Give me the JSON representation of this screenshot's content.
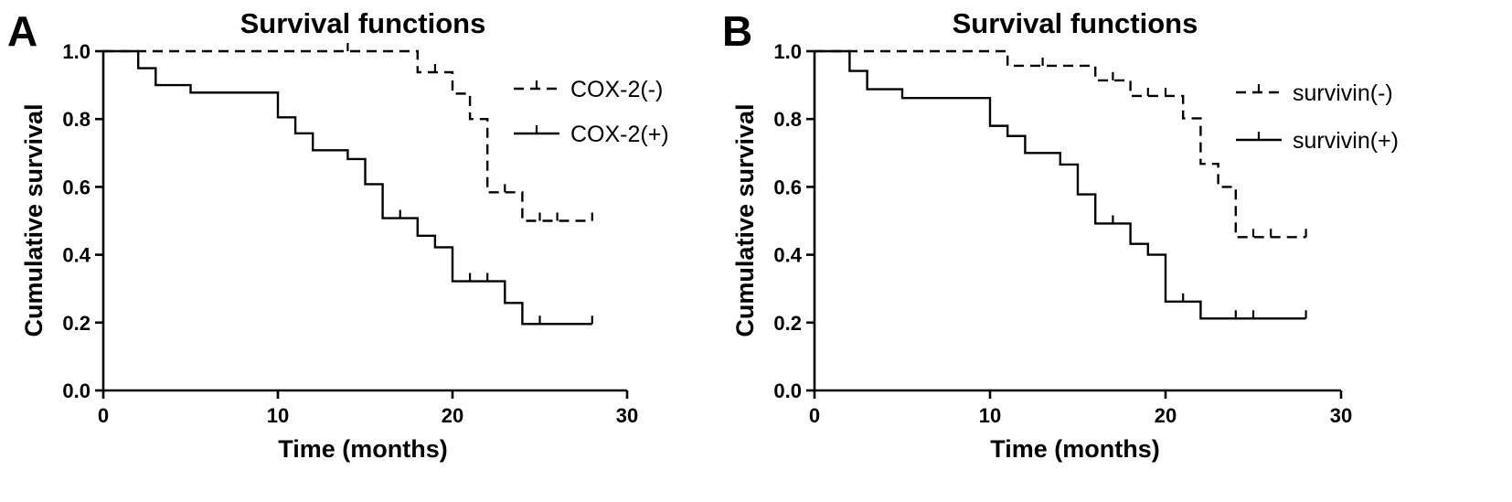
{
  "chart_data": [
    {
      "panel_letter": "A",
      "type": "line",
      "title": "Survival functions",
      "xlabel": "Time (months)",
      "ylabel": "Cumulative survival",
      "xlim": [
        0,
        30
      ],
      "ylim": [
        0,
        1
      ],
      "xticks": [
        0,
        10,
        20,
        30
      ],
      "yticks": [
        0.0,
        0.2,
        0.4,
        0.6,
        0.8,
        1.0
      ],
      "xtick_labels": [
        "0",
        "10",
        "20",
        "30"
      ],
      "ytick_labels": [
        "0.0",
        "0.2",
        "0.4",
        "0.6",
        "0.8",
        "1.0"
      ],
      "grid": false,
      "legend_position": "top-right",
      "series": [
        {
          "name": "COX-2(-)",
          "style": "dashed",
          "steps": [
            [
              0,
              1.0
            ],
            [
              18,
              0.938
            ],
            [
              20,
              0.875
            ],
            [
              21,
              0.8
            ],
            [
              22,
              0.584
            ],
            [
              24,
              0.5
            ],
            [
              28,
              0.5
            ]
          ],
          "censored": [
            [
              14,
              1.0
            ],
            [
              19,
              0.938
            ],
            [
              23,
              0.584
            ],
            [
              25,
              0.5
            ],
            [
              26,
              0.5
            ],
            [
              28,
              0.5
            ]
          ]
        },
        {
          "name": "COX-2(+)",
          "style": "solid",
          "steps": [
            [
              0,
              1.0
            ],
            [
              2,
              0.95
            ],
            [
              3,
              0.9
            ],
            [
              5,
              0.878
            ],
            [
              10,
              0.805
            ],
            [
              11,
              0.758
            ],
            [
              12,
              0.708
            ],
            [
              14,
              0.682
            ],
            [
              15,
              0.608
            ],
            [
              16,
              0.508
            ],
            [
              18,
              0.456
            ],
            [
              19,
              0.422
            ],
            [
              20,
              0.322
            ],
            [
              23,
              0.258
            ],
            [
              24,
              0.196
            ],
            [
              28,
              0.196
            ]
          ],
          "censored": [
            [
              17,
              0.508
            ],
            [
              21,
              0.322
            ],
            [
              22,
              0.322
            ],
            [
              25,
              0.196
            ],
            [
              28,
              0.196
            ]
          ]
        }
      ]
    },
    {
      "panel_letter": "B",
      "type": "line",
      "title": "Survival functions",
      "xlabel": "Time (months)",
      "ylabel": "Cumulative survival",
      "xlim": [
        0,
        30
      ],
      "ylim": [
        0,
        1
      ],
      "xticks": [
        0,
        10,
        20,
        30
      ],
      "yticks": [
        0.0,
        0.2,
        0.4,
        0.6,
        0.8,
        1.0
      ],
      "xtick_labels": [
        "0",
        "10",
        "20",
        "30"
      ],
      "ytick_labels": [
        "0.0",
        "0.2",
        "0.4",
        "0.6",
        "0.8",
        "1.0"
      ],
      "grid": false,
      "legend_position": "top-right",
      "series": [
        {
          "name": "survivin(-)",
          "style": "dashed",
          "steps": [
            [
              0,
              1.0
            ],
            [
              11,
              0.957
            ],
            [
              16,
              0.914
            ],
            [
              18,
              0.868
            ],
            [
              21,
              0.802
            ],
            [
              22,
              0.668
            ],
            [
              23,
              0.6
            ],
            [
              24,
              0.452
            ],
            [
              28,
              0.452
            ]
          ],
          "censored": [
            [
              13,
              0.957
            ],
            [
              17,
              0.914
            ],
            [
              19,
              0.868
            ],
            [
              20,
              0.868
            ],
            [
              25,
              0.452
            ],
            [
              26,
              0.452
            ],
            [
              28,
              0.452
            ]
          ]
        },
        {
          "name": "survivin(+)",
          "style": "solid",
          "steps": [
            [
              0,
              1.0
            ],
            [
              2,
              0.942
            ],
            [
              3,
              0.888
            ],
            [
              5,
              0.862
            ],
            [
              10,
              0.78
            ],
            [
              11,
              0.75
            ],
            [
              12,
              0.7
            ],
            [
              14,
              0.666
            ],
            [
              15,
              0.578
            ],
            [
              16,
              0.492
            ],
            [
              18,
              0.432
            ],
            [
              19,
              0.4
            ],
            [
              20,
              0.262
            ],
            [
              22,
              0.212
            ],
            [
              28,
              0.212
            ]
          ],
          "censored": [
            [
              17,
              0.492
            ],
            [
              21,
              0.262
            ],
            [
              24,
              0.212
            ],
            [
              25,
              0.212
            ],
            [
              28,
              0.212
            ]
          ]
        }
      ]
    }
  ]
}
